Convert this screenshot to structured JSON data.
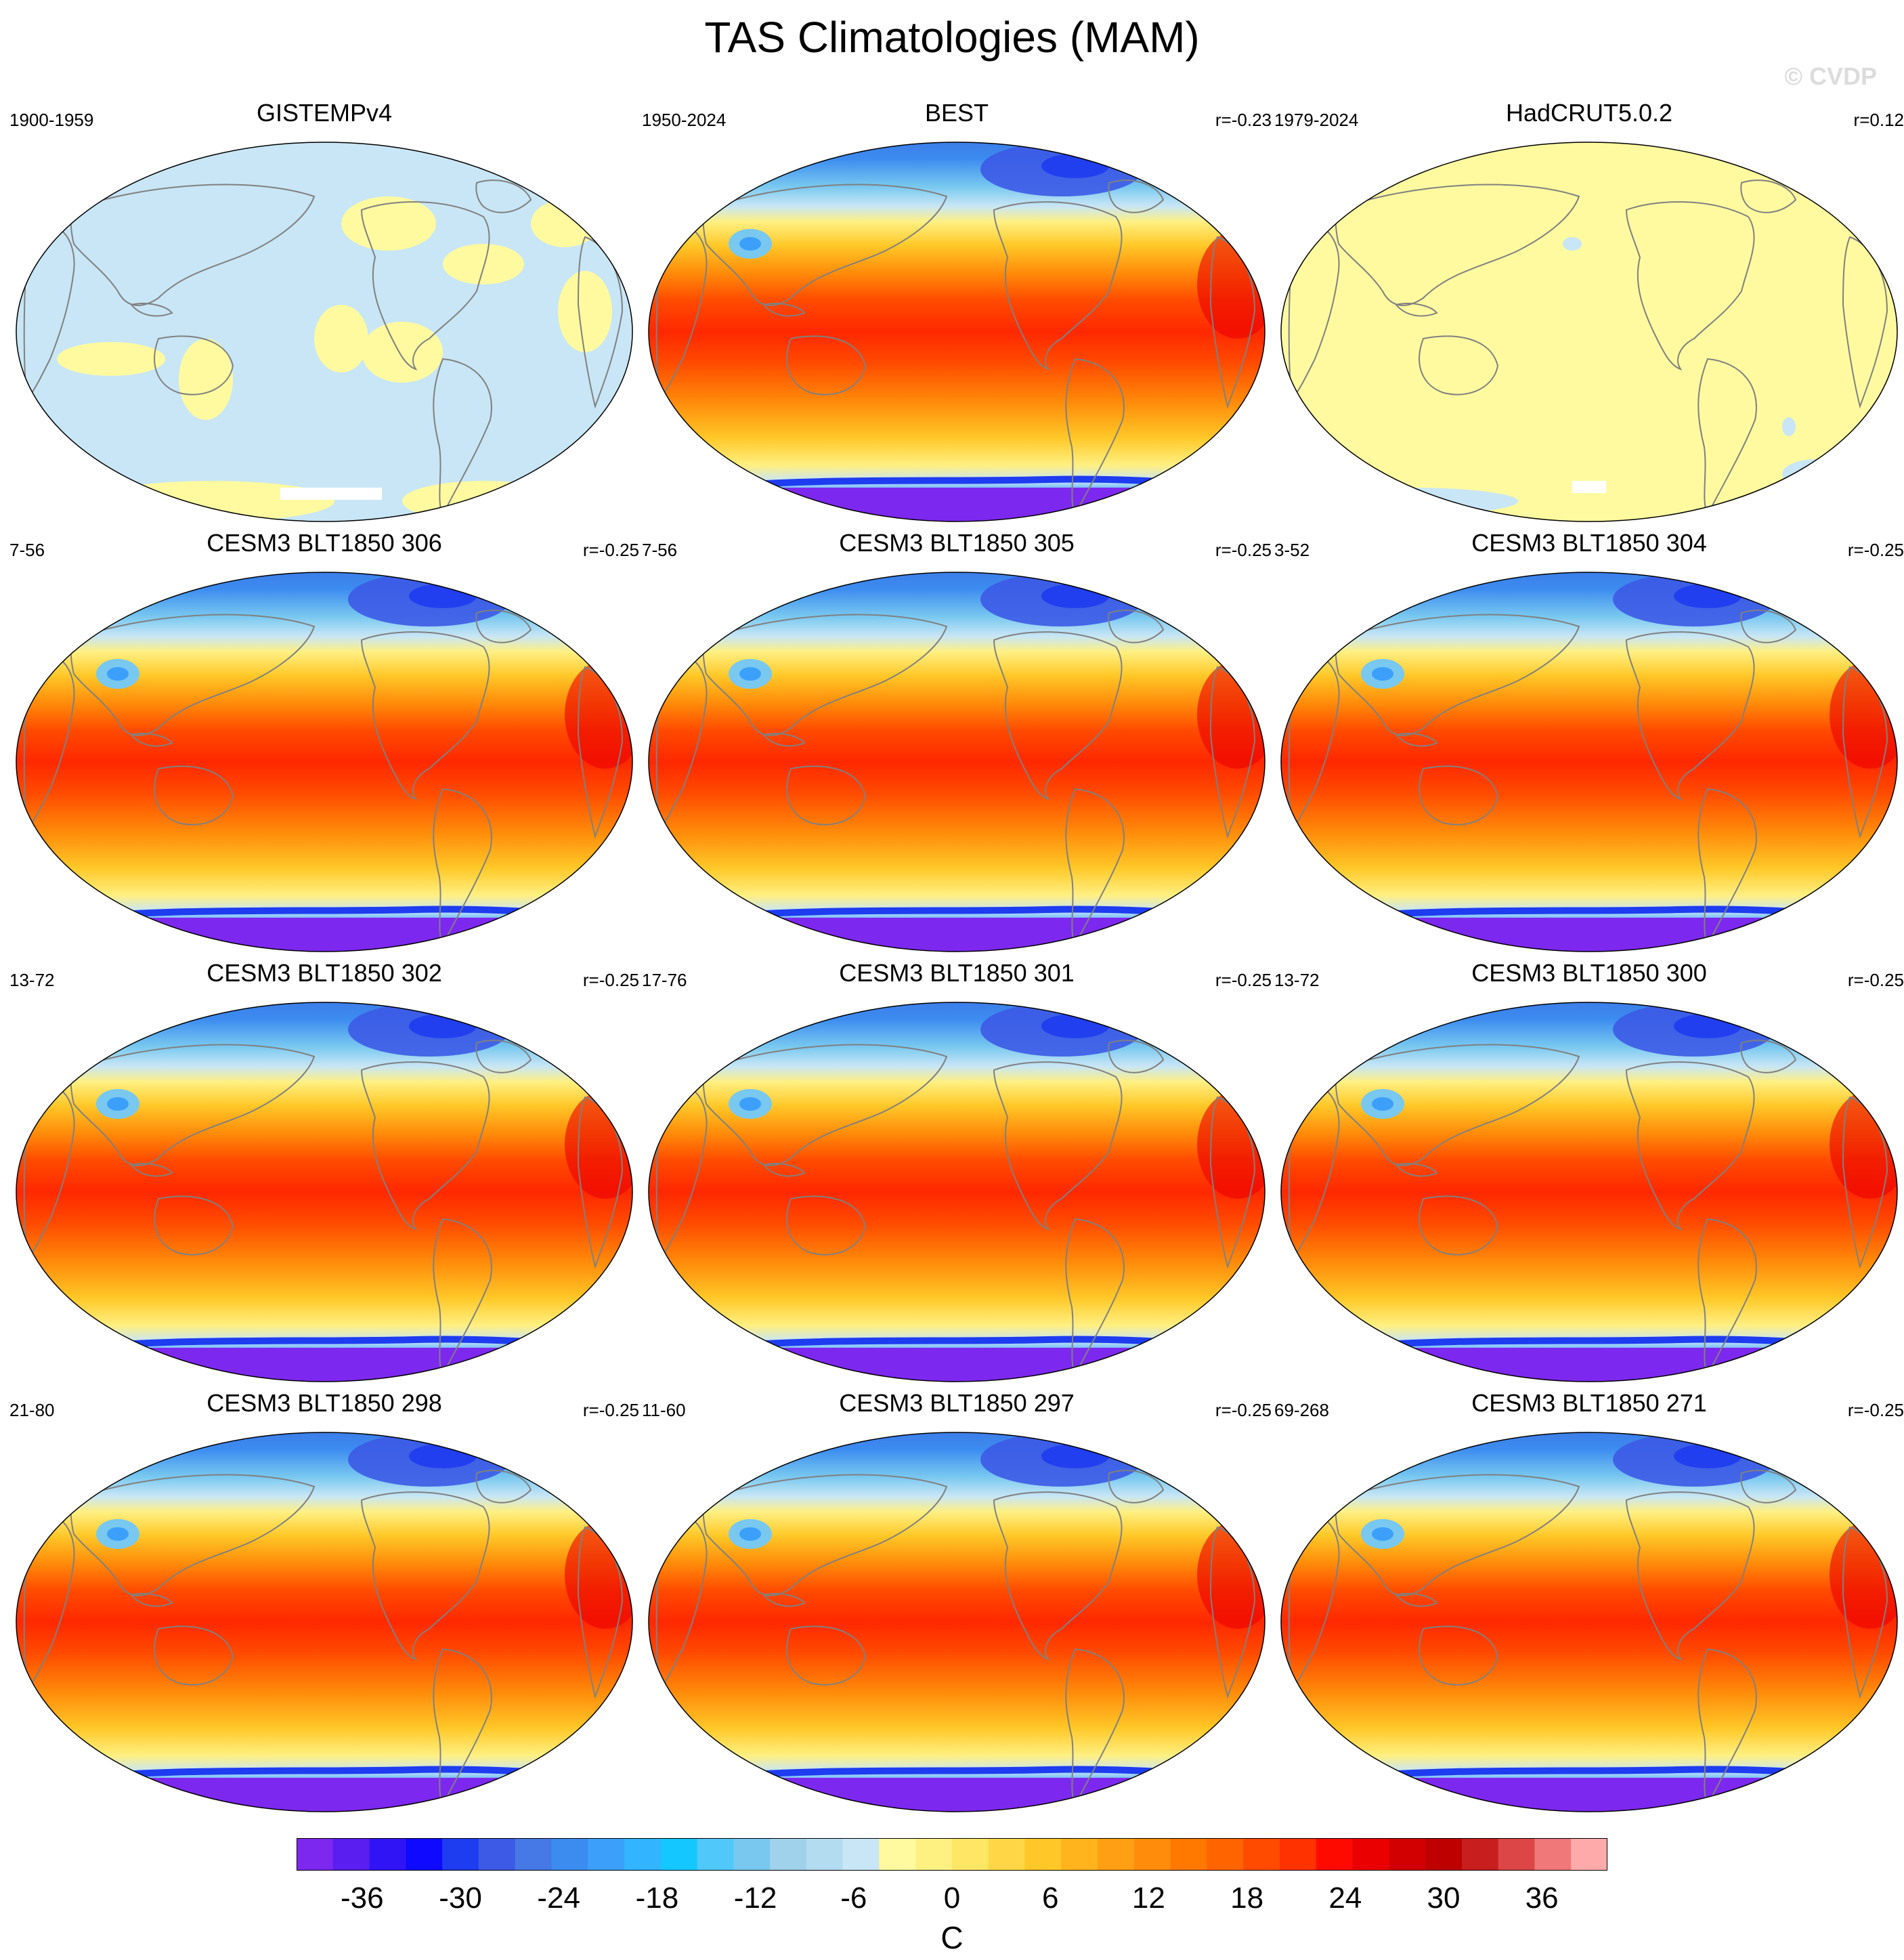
{
  "figure": {
    "title": "TAS Climatologies (MAM)",
    "copyright": "© CVDP",
    "units": "C"
  },
  "colorbar": {
    "tick_labels": [
      "-36",
      "-30",
      "-24",
      "-18",
      "-12",
      "-6",
      "0",
      "6",
      "12",
      "18",
      "24",
      "30",
      "36"
    ],
    "colors": [
      "#7d28ee",
      "#5a1ef0",
      "#3014f5",
      "#0f0aff",
      "#1e3cf0",
      "#3c5ae6",
      "#4678e6",
      "#3c8cf0",
      "#3ca0fa",
      "#32b4ff",
      "#14c8ff",
      "#50c8fa",
      "#78c8f0",
      "#a0d2eb",
      "#b4dcf0",
      "#c8e6f5",
      "#fffaa0",
      "#fff082",
      "#ffe664",
      "#ffd746",
      "#ffc828",
      "#ffb41e",
      "#ffa014",
      "#ff8c0a",
      "#ff7800",
      "#ff6400",
      "#ff4b00",
      "#ff3200",
      "#ff0a00",
      "#eb0000",
      "#d20000",
      "#be0000",
      "#c81e1e",
      "#dc4646",
      "#f07878",
      "#ffaaaa"
    ],
    "range": [
      -40,
      40
    ],
    "interval": 2
  },
  "panels": [
    {
      "title": "GISTEMPv4",
      "period": "1900-1959",
      "corr": "",
      "style": "anom-blue"
    },
    {
      "title": "BEST",
      "period": "1950-2024",
      "corr": "r=-0.23",
      "style": "clim"
    },
    {
      "title": "HadCRUT5.0.2",
      "period": "1979-2024",
      "corr": "r=0.12",
      "style": "anom-yellow"
    },
    {
      "title": "CESM3 BLT1850 306",
      "period": "7-56",
      "corr": "r=-0.25",
      "style": "clim"
    },
    {
      "title": "CESM3 BLT1850 305",
      "period": "7-56",
      "corr": "r=-0.25",
      "style": "clim"
    },
    {
      "title": "CESM3 BLT1850 304",
      "period": "3-52",
      "corr": "r=-0.25",
      "style": "clim"
    },
    {
      "title": "CESM3 BLT1850 302",
      "period": "13-72",
      "corr": "r=-0.25",
      "style": "clim"
    },
    {
      "title": "CESM3 BLT1850 301",
      "period": "17-76",
      "corr": "r=-0.25",
      "style": "clim"
    },
    {
      "title": "CESM3 BLT1850 300",
      "period": "13-72",
      "corr": "r=-0.25",
      "style": "clim"
    },
    {
      "title": "CESM3 BLT1850 298",
      "period": "21-80",
      "corr": "r=-0.25",
      "style": "clim"
    },
    {
      "title": "CESM3 BLT1850 297",
      "period": "11-60",
      "corr": "r=-0.25",
      "style": "clim"
    },
    {
      "title": "CESM3 BLT1850 271",
      "period": "69-268",
      "corr": "r=-0.25",
      "style": "clim"
    }
  ]
}
